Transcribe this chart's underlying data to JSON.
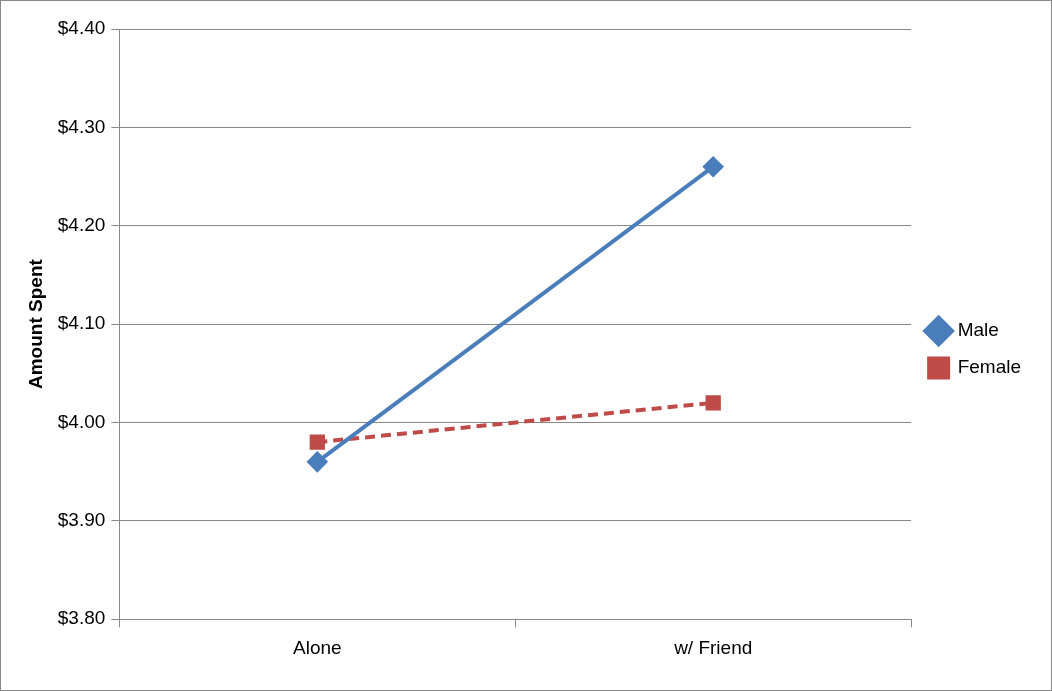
{
  "chart_data": {
    "type": "line",
    "ylabel": "Amount Spent",
    "categories": [
      "Alone",
      "w/ Friend"
    ],
    "series": [
      {
        "name": "Male",
        "color": "#4a7ebb",
        "values": [
          3.96,
          4.26
        ],
        "marker": "diamond",
        "line_style": "solid"
      },
      {
        "name": "Female",
        "color": "#be4b48",
        "values": [
          3.98,
          4.02
        ],
        "marker": "square",
        "line_style": "dashed"
      }
    ],
    "ylim": [
      3.8,
      4.4
    ],
    "yticks": [
      {
        "value": 3.8,
        "label": "$3.80"
      },
      {
        "value": 3.9,
        "label": "$3.90"
      },
      {
        "value": 4.0,
        "label": "$4.00"
      },
      {
        "value": 4.1,
        "label": "$4.10"
      },
      {
        "value": 4.2,
        "label": "$4.20"
      },
      {
        "value": 4.3,
        "label": "$4.30"
      },
      {
        "value": 4.4,
        "label": "$4.40"
      }
    ],
    "grid": "y",
    "legend": "right"
  }
}
